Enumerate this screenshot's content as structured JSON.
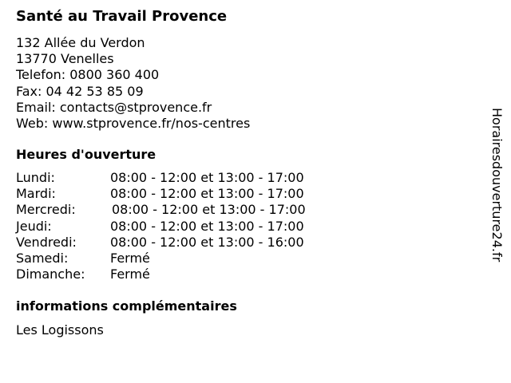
{
  "title": "Santé au Travail Provence",
  "address": [
    "132 Allée du Verdon",
    "13770 Venelles",
    "Telefon: 0800 360 400",
    "Fax: 04 42 53 85 09",
    "Email: contacts@stprovence.fr",
    "Web: www.stprovence.fr/nos-centres"
  ],
  "hours_heading": "Heures d'ouverture",
  "hours": [
    {
      "day": "Lundi:",
      "time": "08:00 - 12:00 et 13:00 - 17:00"
    },
    {
      "day": "Mardi:",
      "time": "08:00 - 12:00 et 13:00 - 17:00"
    },
    {
      "day": "Mercredi:",
      "time": "08:00 - 12:00 et 13:00 - 17:00"
    },
    {
      "day": "Jeudi:",
      "time": "08:00 - 12:00 et 13:00 - 17:00"
    },
    {
      "day": "Vendredi:",
      "time": "08:00 - 12:00 et 13:00 - 16:00"
    },
    {
      "day": "Samedi:",
      "time": "Fermé"
    },
    {
      "day": "Dimanche:",
      "time": "Fermé"
    }
  ],
  "info_heading": "informations complémentaires",
  "info_text": "Les Logissons",
  "watermark": "Horairesdouverture24.fr"
}
